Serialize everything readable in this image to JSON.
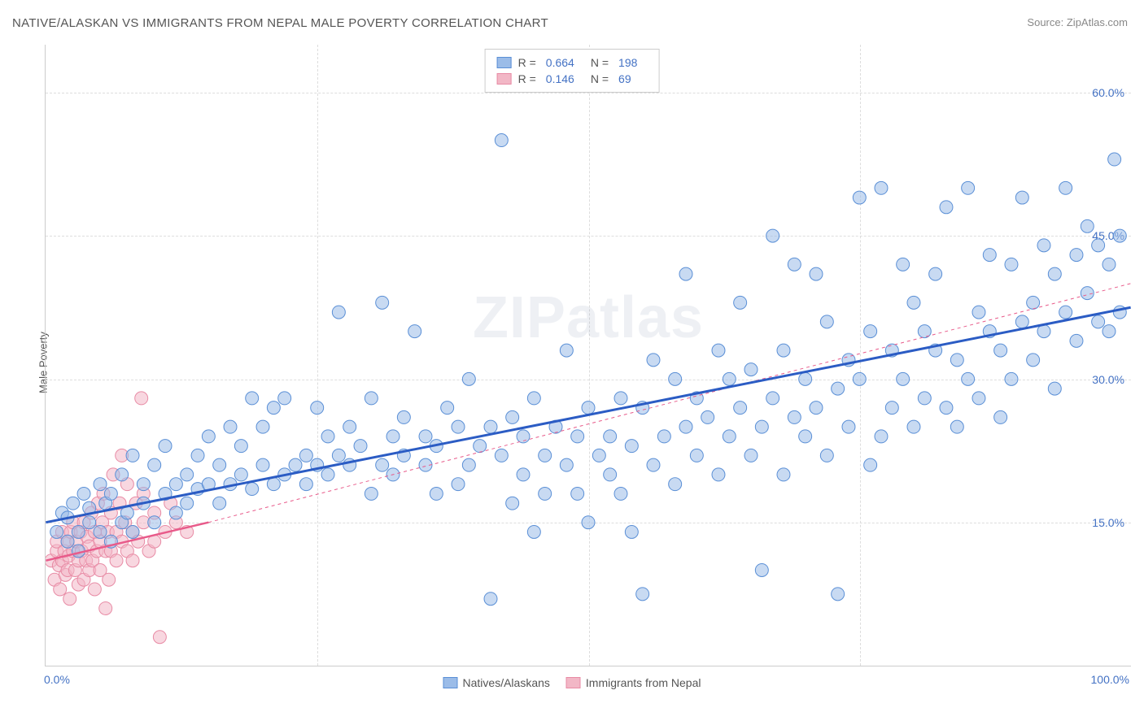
{
  "title": "NATIVE/ALASKAN VS IMMIGRANTS FROM NEPAL MALE POVERTY CORRELATION CHART",
  "source_label": "Source:",
  "source_name": "ZipAtlas.com",
  "y_axis_label": "Male Poverty",
  "watermark": "ZIPatlas",
  "chart": {
    "type": "scatter",
    "background_color": "#ffffff",
    "grid_color": "#dddddd",
    "border_color": "#cccccc",
    "xlim": [
      0,
      100
    ],
    "ylim": [
      0,
      65
    ],
    "x_ticks": [
      {
        "value": 0,
        "label": "0.0%"
      },
      {
        "value": 100,
        "label": "100.0%"
      }
    ],
    "y_ticks": [
      {
        "value": 15,
        "label": "15.0%"
      },
      {
        "value": 30,
        "label": "30.0%"
      },
      {
        "value": 45,
        "label": "45.0%"
      },
      {
        "value": 60,
        "label": "60.0%"
      }
    ],
    "x_grid_values": [
      25,
      50,
      75
    ],
    "y_grid_values": [
      15,
      30,
      45,
      60
    ],
    "tick_color": "#4472c4",
    "marker_radius": 8,
    "marker_opacity": 0.55,
    "series": [
      {
        "name": "Natives/Alaskans",
        "fill_color": "#9bbce8",
        "stroke_color": "#5a8fd6",
        "trend_color": "#2b5cc4",
        "trend_width": 3,
        "trend_dash": "none",
        "trend_line": {
          "x1": 0,
          "y1": 15,
          "x2": 100,
          "y2": 37.5
        },
        "trend_extrap": null,
        "R": "0.664",
        "N": "198",
        "points": [
          [
            1,
            14
          ],
          [
            1.5,
            16
          ],
          [
            2,
            13
          ],
          [
            2,
            15.5
          ],
          [
            2.5,
            17
          ],
          [
            3,
            14
          ],
          [
            3,
            12
          ],
          [
            3.5,
            18
          ],
          [
            4,
            15
          ],
          [
            4,
            16.5
          ],
          [
            5,
            14
          ],
          [
            5,
            19
          ],
          [
            5.5,
            17
          ],
          [
            6,
            13
          ],
          [
            6,
            18
          ],
          [
            7,
            15
          ],
          [
            7,
            20
          ],
          [
            7.5,
            16
          ],
          [
            8,
            14
          ],
          [
            8,
            22
          ],
          [
            9,
            17
          ],
          [
            9,
            19
          ],
          [
            10,
            15
          ],
          [
            10,
            21
          ],
          [
            11,
            18
          ],
          [
            11,
            23
          ],
          [
            12,
            16
          ],
          [
            12,
            19
          ],
          [
            13,
            20
          ],
          [
            13,
            17
          ],
          [
            14,
            18.5
          ],
          [
            14,
            22
          ],
          [
            15,
            19
          ],
          [
            15,
            24
          ],
          [
            16,
            17
          ],
          [
            16,
            21
          ],
          [
            17,
            25
          ],
          [
            17,
            19
          ],
          [
            18,
            20
          ],
          [
            18,
            23
          ],
          [
            19,
            18.5
          ],
          [
            19,
            28
          ],
          [
            20,
            21
          ],
          [
            20,
            25
          ],
          [
            21,
            19
          ],
          [
            21,
            27
          ],
          [
            22,
            28
          ],
          [
            22,
            20
          ],
          [
            23,
            21
          ],
          [
            24,
            19
          ],
          [
            24,
            22
          ],
          [
            25,
            27
          ],
          [
            25,
            21
          ],
          [
            26,
            20
          ],
          [
            26,
            24
          ],
          [
            27,
            37
          ],
          [
            27,
            22
          ],
          [
            28,
            21
          ],
          [
            28,
            25
          ],
          [
            29,
            23
          ],
          [
            30,
            18
          ],
          [
            30,
            28
          ],
          [
            31,
            21
          ],
          [
            31,
            38
          ],
          [
            32,
            24
          ],
          [
            32,
            20
          ],
          [
            33,
            22
          ],
          [
            33,
            26
          ],
          [
            34,
            35
          ],
          [
            35,
            21
          ],
          [
            35,
            24
          ],
          [
            36,
            18
          ],
          [
            36,
            23
          ],
          [
            37,
            27
          ],
          [
            38,
            19
          ],
          [
            38,
            25
          ],
          [
            39,
            21
          ],
          [
            39,
            30
          ],
          [
            40,
            23
          ],
          [
            41,
            7
          ],
          [
            41,
            25
          ],
          [
            42,
            55
          ],
          [
            42,
            22
          ],
          [
            43,
            17
          ],
          [
            43,
            26
          ],
          [
            44,
            24
          ],
          [
            44,
            20
          ],
          [
            45,
            14
          ],
          [
            45,
            28
          ],
          [
            46,
            22
          ],
          [
            46,
            18
          ],
          [
            47,
            25
          ],
          [
            48,
            21
          ],
          [
            48,
            33
          ],
          [
            49,
            24
          ],
          [
            49,
            18
          ],
          [
            50,
            15
          ],
          [
            50,
            27
          ],
          [
            51,
            22
          ],
          [
            52,
            20
          ],
          [
            52,
            24
          ],
          [
            53,
            28
          ],
          [
            53,
            18
          ],
          [
            54,
            23
          ],
          [
            54,
            14
          ],
          [
            55,
            7.5
          ],
          [
            55,
            27
          ],
          [
            56,
            21
          ],
          [
            56,
            32
          ],
          [
            57,
            24
          ],
          [
            58,
            19
          ],
          [
            58,
            30
          ],
          [
            59,
            25
          ],
          [
            59,
            41
          ],
          [
            60,
            22
          ],
          [
            60,
            28
          ],
          [
            61,
            26
          ],
          [
            62,
            20
          ],
          [
            62,
            33
          ],
          [
            63,
            24
          ],
          [
            63,
            30
          ],
          [
            64,
            27
          ],
          [
            64,
            38
          ],
          [
            65,
            22
          ],
          [
            65,
            31
          ],
          [
            66,
            25
          ],
          [
            66,
            10
          ],
          [
            67,
            45
          ],
          [
            67,
            28
          ],
          [
            68,
            20
          ],
          [
            68,
            33
          ],
          [
            69,
            26
          ],
          [
            69,
            42
          ],
          [
            70,
            24
          ],
          [
            70,
            30
          ],
          [
            71,
            41
          ],
          [
            71,
            27
          ],
          [
            72,
            22
          ],
          [
            72,
            36
          ],
          [
            73,
            29
          ],
          [
            73,
            7.5
          ],
          [
            74,
            32
          ],
          [
            74,
            25
          ],
          [
            75,
            49
          ],
          [
            75,
            30
          ],
          [
            76,
            21
          ],
          [
            76,
            35
          ],
          [
            77,
            24
          ],
          [
            77,
            50
          ],
          [
            78,
            33
          ],
          [
            78,
            27
          ],
          [
            79,
            42
          ],
          [
            79,
            30
          ],
          [
            80,
            25
          ],
          [
            80,
            38
          ],
          [
            81,
            28
          ],
          [
            81,
            35
          ],
          [
            82,
            33
          ],
          [
            82,
            41
          ],
          [
            83,
            27
          ],
          [
            83,
            48
          ],
          [
            84,
            32
          ],
          [
            84,
            25
          ],
          [
            85,
            50
          ],
          [
            85,
            30
          ],
          [
            86,
            37
          ],
          [
            86,
            28
          ],
          [
            87,
            35
          ],
          [
            87,
            43
          ],
          [
            88,
            33
          ],
          [
            88,
            26
          ],
          [
            89,
            42
          ],
          [
            89,
            30
          ],
          [
            90,
            49
          ],
          [
            90,
            36
          ],
          [
            91,
            38
          ],
          [
            91,
            32
          ],
          [
            92,
            35
          ],
          [
            92,
            44
          ],
          [
            93,
            29
          ],
          [
            93,
            41
          ],
          [
            94,
            37
          ],
          [
            94,
            50
          ],
          [
            95,
            34
          ],
          [
            95,
            43
          ],
          [
            96,
            39
          ],
          [
            96,
            46
          ],
          [
            97,
            36
          ],
          [
            97,
            44
          ],
          [
            98,
            42
          ],
          [
            98,
            35
          ],
          [
            98.5,
            53
          ],
          [
            99,
            45
          ],
          [
            99,
            37
          ]
        ]
      },
      {
        "name": "Immigrants from Nepal",
        "fill_color": "#f2b7c6",
        "stroke_color": "#e88ba5",
        "trend_color": "#e85a8a",
        "trend_width": 2.5,
        "trend_dash": "none",
        "trend_line": {
          "x1": 0,
          "y1": 11,
          "x2": 15,
          "y2": 15
        },
        "trend_extrap": {
          "x1": 15,
          "y1": 15,
          "x2": 100,
          "y2": 40,
          "dash": "4,4",
          "width": 1
        },
        "R": "0.146",
        "N": "69",
        "points": [
          [
            0.5,
            11
          ],
          [
            0.8,
            9
          ],
          [
            1,
            12
          ],
          [
            1,
            13
          ],
          [
            1.2,
            10.5
          ],
          [
            1.3,
            8
          ],
          [
            1.5,
            11
          ],
          [
            1.5,
            14
          ],
          [
            1.7,
            12
          ],
          [
            1.8,
            9.5
          ],
          [
            2,
            13
          ],
          [
            2,
            10
          ],
          [
            2.1,
            11.5
          ],
          [
            2.2,
            7
          ],
          [
            2.3,
            14
          ],
          [
            2.5,
            12
          ],
          [
            2.5,
            15
          ],
          [
            2.7,
            10
          ],
          [
            2.8,
            13
          ],
          [
            3,
            11
          ],
          [
            3,
            8.5
          ],
          [
            3.2,
            14
          ],
          [
            3.3,
            12
          ],
          [
            3.5,
            9
          ],
          [
            3.5,
            15
          ],
          [
            3.7,
            11
          ],
          [
            3.8,
            13.5
          ],
          [
            4,
            10
          ],
          [
            4,
            12.5
          ],
          [
            4.2,
            16
          ],
          [
            4.3,
            11
          ],
          [
            4.5,
            8
          ],
          [
            4.5,
            14
          ],
          [
            4.7,
            12
          ],
          [
            4.8,
            17
          ],
          [
            5,
            13
          ],
          [
            5,
            10
          ],
          [
            5.2,
            15
          ],
          [
            5.3,
            18
          ],
          [
            5.5,
            12
          ],
          [
            5.5,
            6
          ],
          [
            5.7,
            14
          ],
          [
            5.8,
            9
          ],
          [
            6,
            16
          ],
          [
            6,
            12
          ],
          [
            6.2,
            20
          ],
          [
            6.5,
            14
          ],
          [
            6.5,
            11
          ],
          [
            6.8,
            17
          ],
          [
            7,
            13
          ],
          [
            7,
            22
          ],
          [
            7.3,
            15
          ],
          [
            7.5,
            12
          ],
          [
            7.5,
            19
          ],
          [
            8,
            14
          ],
          [
            8,
            11
          ],
          [
            8.3,
            17
          ],
          [
            8.5,
            13
          ],
          [
            8.8,
            28
          ],
          [
            9,
            15
          ],
          [
            9,
            18
          ],
          [
            9.5,
            12
          ],
          [
            10,
            16
          ],
          [
            10,
            13
          ],
          [
            10.5,
            3
          ],
          [
            11,
            14
          ],
          [
            11.5,
            17
          ],
          [
            12,
            15
          ],
          [
            13,
            14
          ]
        ]
      }
    ],
    "legend_bottom": [
      {
        "swatch_fill": "#9bbce8",
        "swatch_stroke": "#5a8fd6",
        "label": "Natives/Alaskans"
      },
      {
        "swatch_fill": "#f2b7c6",
        "swatch_stroke": "#e88ba5",
        "label": "Immigrants from Nepal"
      }
    ]
  }
}
